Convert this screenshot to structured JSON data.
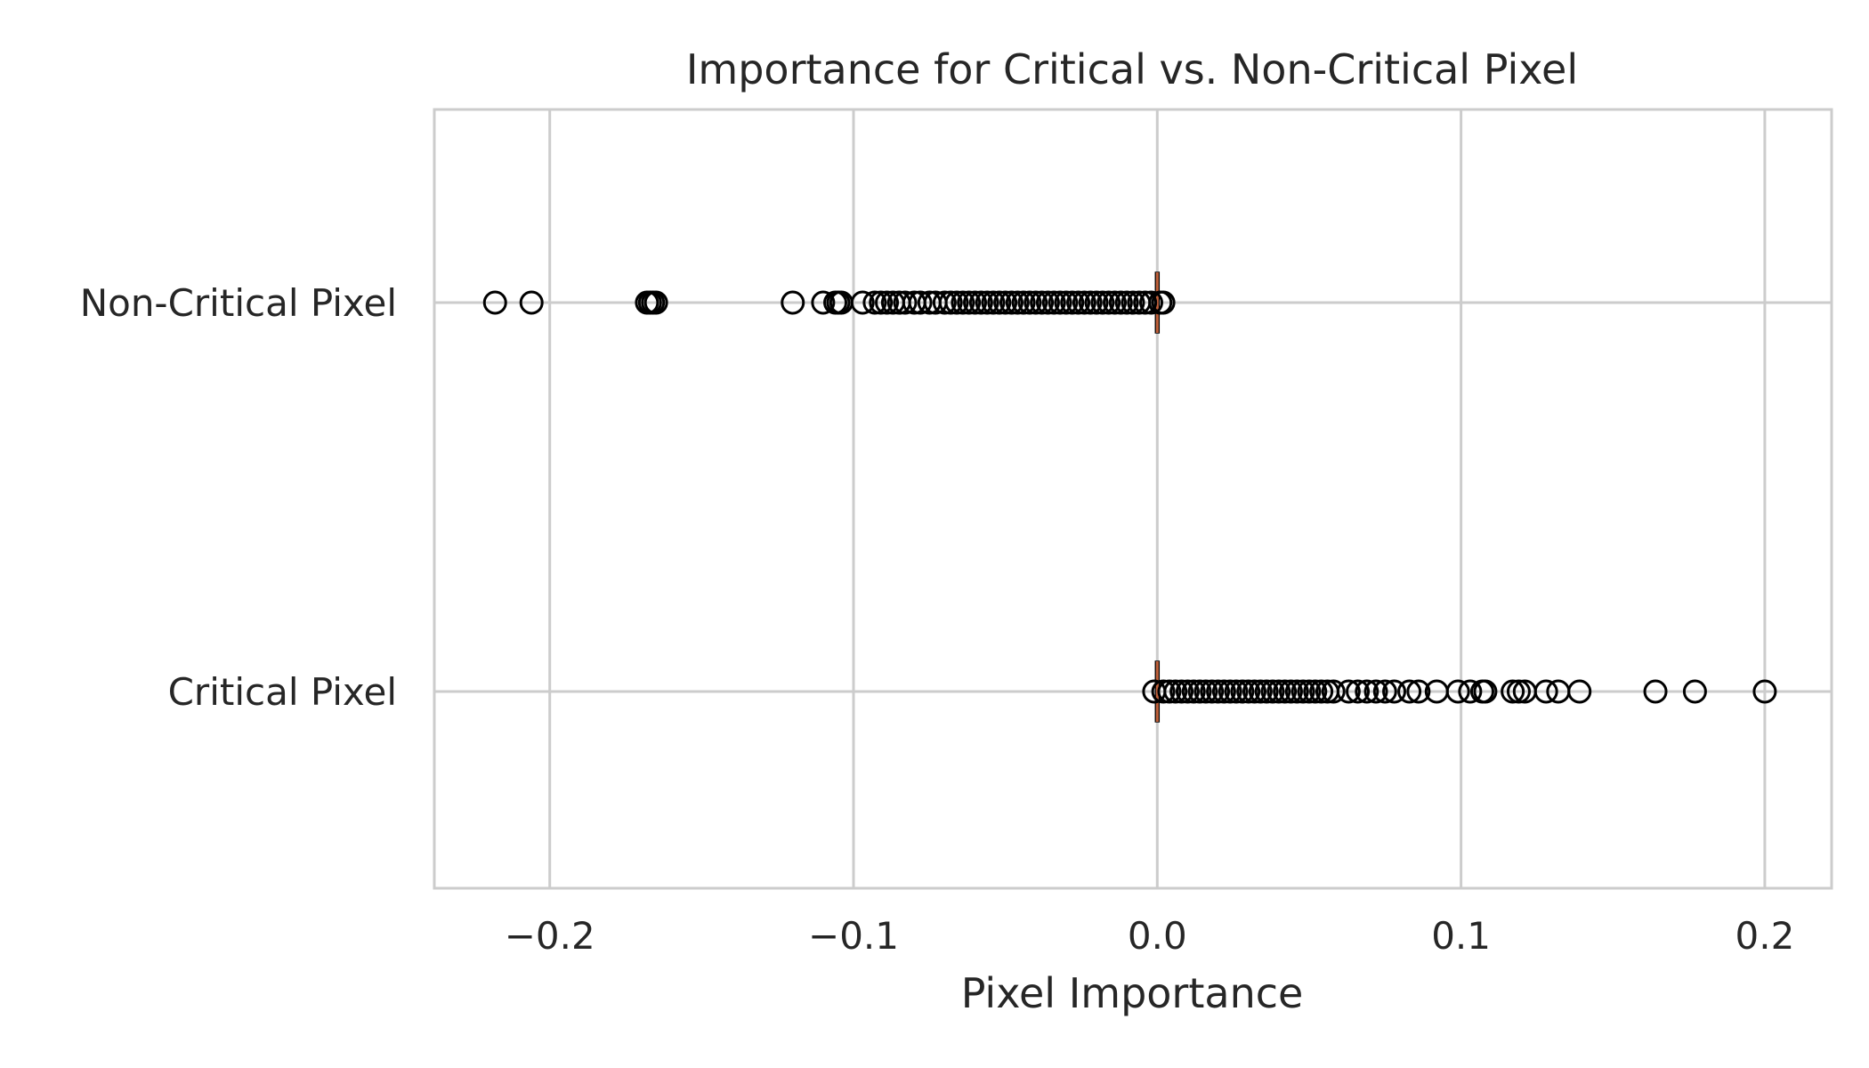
{
  "chart_data": {
    "type": "box",
    "orientation": "horizontal",
    "title": "Importance for Critical vs. Non-Critical Pixel",
    "xlabel": "Pixel Importance",
    "ylabel": "",
    "xlim": [
      -0.238,
      0.222
    ],
    "xticks": [
      -0.2,
      -0.1,
      0.0,
      0.1,
      0.2
    ],
    "xtick_labels": [
      "−0.2",
      "−0.1",
      "0.0",
      "0.1",
      "0.2"
    ],
    "categories": [
      "Non-Critical Pixel",
      "Critical Pixel"
    ],
    "grid": true,
    "median_color": "#c0603a",
    "series": [
      {
        "category": "Non-Critical Pixel",
        "median": 0.0,
        "q1": 0.0,
        "q3": 0.0,
        "outliers": [
          -0.218,
          -0.206,
          -0.168,
          -0.167,
          -0.166,
          -0.165,
          -0.12,
          -0.11,
          -0.106,
          -0.105,
          -0.104,
          -0.097,
          -0.093,
          -0.091,
          -0.089,
          -0.087,
          -0.085,
          -0.083,
          -0.08,
          -0.078,
          -0.075,
          -0.073,
          -0.07,
          -0.068,
          -0.066,
          -0.064,
          -0.062,
          -0.06,
          -0.058,
          -0.056,
          -0.054,
          -0.052,
          -0.05,
          -0.048,
          -0.046,
          -0.044,
          -0.042,
          -0.04,
          -0.038,
          -0.036,
          -0.034,
          -0.032,
          -0.03,
          -0.028,
          -0.026,
          -0.024,
          -0.022,
          -0.02,
          -0.018,
          -0.016,
          -0.014,
          -0.012,
          -0.01,
          -0.008,
          -0.006,
          -0.004,
          -0.002,
          0.001,
          0.002
        ]
      },
      {
        "category": "Critical Pixel",
        "median": 0.0,
        "q1": 0.0,
        "q3": 0.0,
        "outliers": [
          -0.001,
          0.002,
          0.004,
          0.006,
          0.008,
          0.01,
          0.012,
          0.014,
          0.016,
          0.018,
          0.02,
          0.022,
          0.024,
          0.026,
          0.028,
          0.03,
          0.032,
          0.034,
          0.036,
          0.038,
          0.04,
          0.042,
          0.044,
          0.046,
          0.048,
          0.05,
          0.052,
          0.054,
          0.056,
          0.058,
          0.063,
          0.066,
          0.069,
          0.072,
          0.075,
          0.078,
          0.083,
          0.086,
          0.092,
          0.099,
          0.103,
          0.107,
          0.108,
          0.117,
          0.119,
          0.121,
          0.128,
          0.132,
          0.139,
          0.164,
          0.177,
          0.2
        ]
      }
    ]
  }
}
